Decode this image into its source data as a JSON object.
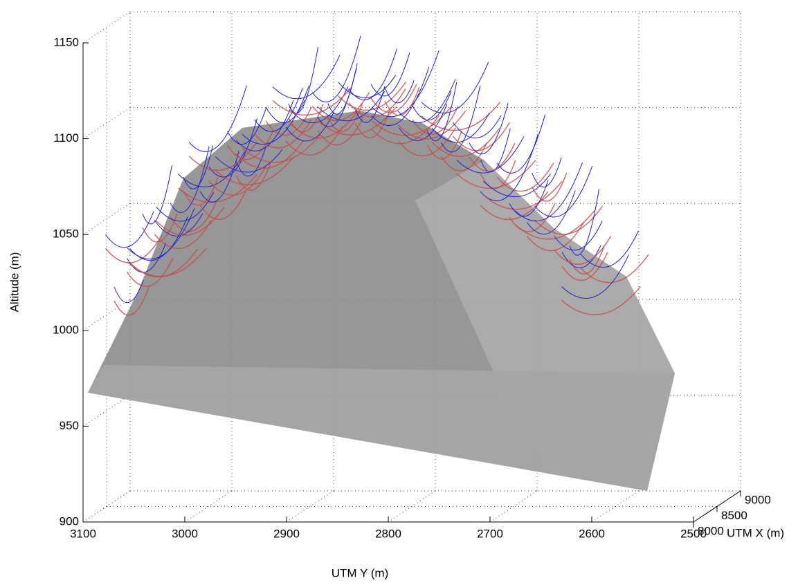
{
  "chart_data": {
    "type": "surface3d",
    "zlabel": "Altitude (m)",
    "ylabel": "UTM Y (m)",
    "xlabel": "UTM X (m)",
    "zlim": [
      900,
      1150
    ],
    "zticks": [
      900,
      950,
      1000,
      1050,
      1100,
      1150
    ],
    "ylim": [
      2500,
      3100
    ],
    "yticks": [
      3100,
      3000,
      2900,
      2800,
      2700,
      2600,
      2500
    ],
    "xlim": [
      8000,
      9000
    ],
    "xticks": [
      8000,
      8500,
      9000
    ],
    "grid": true
  }
}
